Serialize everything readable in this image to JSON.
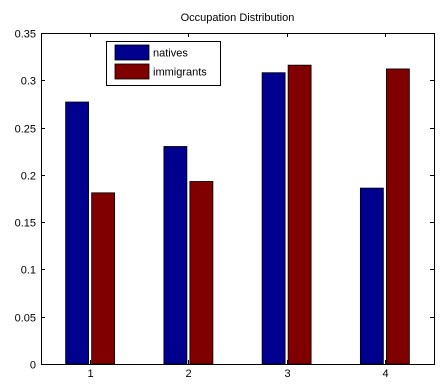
{
  "chart_data": {
    "type": "bar",
    "title": "Occupation Distribution",
    "xlabel": "",
    "ylabel": "",
    "categories": [
      "1",
      "2",
      "3",
      "4"
    ],
    "ylim": [
      0,
      0.35
    ],
    "yticks": [
      "0",
      "0.05",
      "0.1",
      "0.15",
      "0.2",
      "0.25",
      "0.3",
      "0.35"
    ],
    "grid": false,
    "legend_position": "top-left",
    "series": [
      {
        "name": "natives",
        "color": "#00008f",
        "values": [
          0.277,
          0.23,
          0.308,
          0.186
        ]
      },
      {
        "name": "immigrants",
        "color": "#800000",
        "values": [
          0.181,
          0.193,
          0.316,
          0.312
        ]
      }
    ]
  }
}
